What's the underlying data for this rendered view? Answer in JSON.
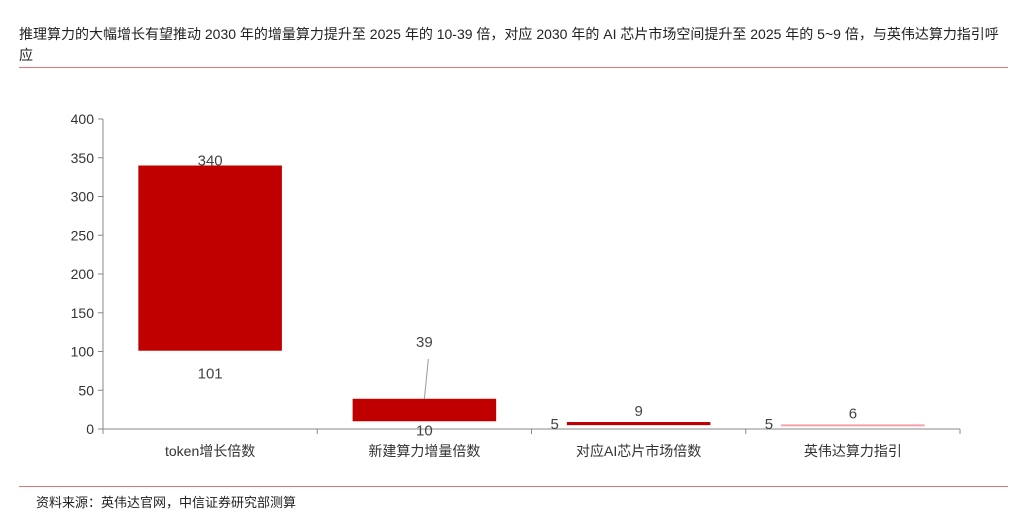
{
  "title": "推理算力的大幅增长有望推动 2030 年的增量算力提升至 2025 年的 10-39 倍，对应 2030 年的 AI 芯片市场空间提升至 2025 年的 5~9 倍，与英伟达算力指引呼应",
  "source": "资料来源：英伟达官网，中信证券研究部测算",
  "colors": {
    "bar": "#c00000",
    "bar_light": "#f4a3aa",
    "rule": "#e5737c"
  },
  "chart_data": {
    "type": "bar",
    "subtype": "floating-range",
    "categories": [
      "token增长倍数",
      "新建算力增量倍数",
      "对应AI芯片市场倍数",
      "英伟达算力指引"
    ],
    "series": [
      {
        "name": "low",
        "values": [
          101,
          10,
          5,
          5
        ]
      },
      {
        "name": "high",
        "values": [
          340,
          39,
          9,
          6
        ]
      }
    ],
    "ylim": [
      0,
      400
    ],
    "yticks": [
      0,
      50,
      100,
      150,
      200,
      250,
      300,
      350,
      400
    ],
    "xlabel": "",
    "ylabel": "",
    "grid": false,
    "legend": "none"
  }
}
